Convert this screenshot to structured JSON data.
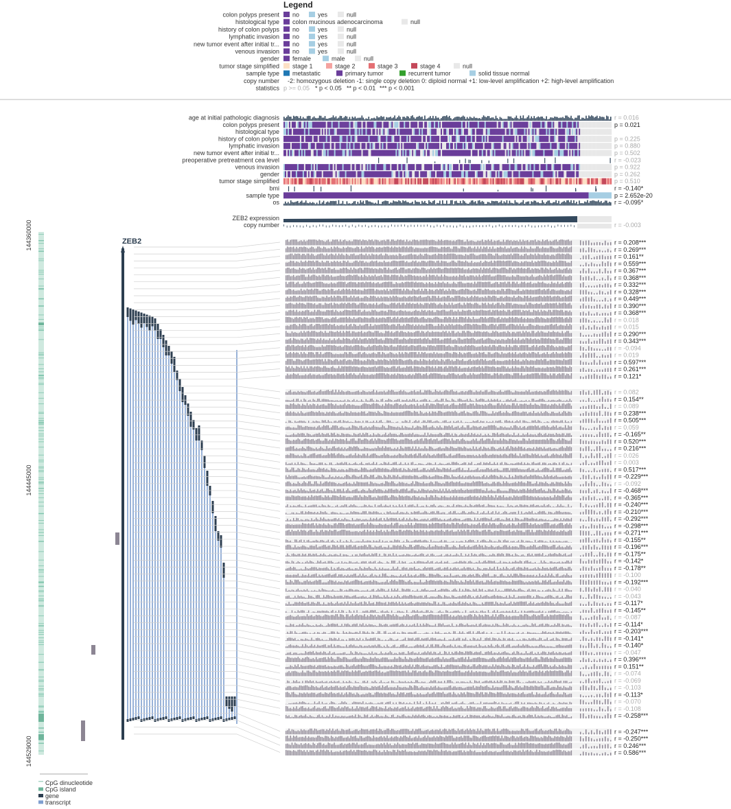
{
  "legend": {
    "title": "Legend",
    "rows": [
      {
        "label": "colon polyps present",
        "items": [
          {
            "text": "no",
            "color": "#6a3d9a"
          },
          {
            "text": "yes",
            "color": "#a6cee3"
          },
          {
            "text": "null",
            "color": "#e8e8e8"
          }
        ]
      },
      {
        "label": "histological type",
        "items": [
          {
            "text": "colon mucinous adenocarcinoma",
            "color": "#6a3d9a"
          },
          {
            "text": "null",
            "color": "#e8e8e8"
          }
        ]
      },
      {
        "label": "history of colon polyps",
        "items": [
          {
            "text": "no",
            "color": "#6a3d9a"
          },
          {
            "text": "yes",
            "color": "#a6cee3"
          },
          {
            "text": "null",
            "color": "#e8e8e8"
          }
        ]
      },
      {
        "label": "lymphatic invasion",
        "items": [
          {
            "text": "no",
            "color": "#6a3d9a"
          },
          {
            "text": "yes",
            "color": "#a6cee3"
          },
          {
            "text": "null",
            "color": "#e8e8e8"
          }
        ]
      },
      {
        "label": "new tumor event after initial tr...",
        "items": [
          {
            "text": "no",
            "color": "#6a3d9a"
          },
          {
            "text": "yes",
            "color": "#a6cee3"
          },
          {
            "text": "null",
            "color": "#e8e8e8"
          }
        ]
      },
      {
        "label": "venous invasion",
        "items": [
          {
            "text": "no",
            "color": "#6a3d9a"
          },
          {
            "text": "yes",
            "color": "#a6cee3"
          },
          {
            "text": "null",
            "color": "#e8e8e8"
          }
        ]
      },
      {
        "label": "gender",
        "items": [
          {
            "text": "female",
            "color": "#6a3d9a"
          },
          {
            "text": "male",
            "color": "#a6cee3"
          },
          {
            "text": "null",
            "color": "#e8e8e8"
          }
        ]
      },
      {
        "label": "tumor stage simplified",
        "items": [
          {
            "text": "stage 1",
            "color": "#fde0c5"
          },
          {
            "text": "stage 2",
            "color": "#f4a3a0"
          },
          {
            "text": "stage 3",
            "color": "#e46f73"
          },
          {
            "text": "stage 4",
            "color": "#c4485a"
          },
          {
            "text": "null",
            "color": "#e8e8e8"
          }
        ]
      },
      {
        "label": "sample type",
        "items": [
          {
            "text": "metastatic",
            "color": "#1f78b4"
          },
          {
            "text": "primary tumor",
            "color": "#6a3d9a"
          },
          {
            "text": "recurrent tumor",
            "color": "#33a02c"
          },
          {
            "text": "solid tissue normal",
            "color": "#a6cee3"
          }
        ]
      },
      {
        "label": "copy number",
        "text": "-2: homozygous deletion  -1: single copy deletion  0: diploid normal  +1: low-level amplification  +2: high-level amplification"
      },
      {
        "label": "statistics",
        "stats": [
          "p >= 0.05",
          "* p < 0.05",
          "** p < 0.01",
          "*** p < 0.001"
        ]
      }
    ]
  },
  "tracks": [
    {
      "label": "age at initial pathologic diagnosis",
      "type": "bars",
      "stat": "r = 0.016",
      "sig": false
    },
    {
      "label": "colon polyps present",
      "type": "cat",
      "stat": "p = 0.021",
      "sig": true
    },
    {
      "label": "histological type",
      "type": "cat",
      "stat": "",
      "sig": false
    },
    {
      "label": "history of colon polyps",
      "type": "cat",
      "stat": "p = 0.225",
      "sig": false
    },
    {
      "label": "lymphatic invasion",
      "type": "cat",
      "stat": "p = 0.880",
      "sig": false
    },
    {
      "label": "new tumor event after initial tr...",
      "type": "cat",
      "stat": "p = 0.502",
      "sig": false
    },
    {
      "label": "preoperative pretreatment cea level",
      "type": "sparse",
      "stat": "r = -0.023",
      "sig": false
    },
    {
      "label": "venous invasion",
      "type": "cat",
      "stat": "p = 0.922",
      "sig": false
    },
    {
      "label": "gender",
      "type": "cat",
      "stat": "p = 0.262",
      "sig": false
    },
    {
      "label": "tumor stage simplified",
      "type": "stage",
      "stat": "p = 0.510",
      "sig": false
    },
    {
      "label": "bmi",
      "type": "sparse",
      "stat": "r = -0.140*",
      "sig": true
    },
    {
      "label": "sample type",
      "type": "sample",
      "stat": "p = 2.652e-20",
      "sig": true
    },
    {
      "label": "os",
      "type": "bars",
      "stat": "r = -0.095*",
      "sig": true
    }
  ],
  "expression": {
    "label": "ZEB2 expression",
    "copy_label": "copy number",
    "stat": "r = -0.003"
  },
  "gene": {
    "name": "ZEB2"
  },
  "coords": [
    "144360000",
    "144445000",
    "144529000"
  ],
  "probe_stats": [
    "r = 0.208***",
    "r = 0.269***",
    "r = 0.161**",
    "r = 0.559***",
    "r = 0.367***",
    "r = 0.368***",
    "r = 0.332***",
    "r = 0.328***",
    "r = 0.449***",
    "r = 0.390***",
    "r = 0.368***",
    "r = 0.018",
    "r = 0.015",
    "r = 0.290***",
    "r = 0.343***",
    "r = -0.094",
    "r = 0.019",
    "r = 0.597***",
    "r = 0.261***",
    "r = 0.121*",
    "r = 0.082",
    "r = 0.154**",
    "r = 0.089",
    "r = 0.238***",
    "r = 0.505***",
    "r = 0.059",
    "r = -0.165**",
    "r = 0.520***",
    "r = 0.216***",
    "r = 0.026",
    "r = 0.003",
    "r = 0.517***",
    "r = -0.229***",
    "r = -0.092",
    "r = -0.468***",
    "r = -0.365***",
    "r = -0.240***",
    "r = -0.210***",
    "r = -0.292***",
    "r = -0.298***",
    "r = -0.271***",
    "r = -0.155**",
    "r = -0.196***",
    "r = -0.175**",
    "r = -0.142*",
    "r = -0.178**",
    "r = -0.100",
    "r = -0.192***",
    "r = -0.040",
    "r = -0.043",
    "r = -0.117*",
    "r = -0.145**",
    "r = -0.087",
    "r = -0.114*",
    "r = -0.203***",
    "r = -0.141*",
    "r = -0.140*",
    "r = -0.047",
    "r = 0.396***",
    "r = 0.151**",
    "r = -0.074",
    "r = -0.069",
    "r = -0.103",
    "r = -0.113*",
    "r = -0.070",
    "r = -0.108",
    "r = -0.258***",
    "r = -0.247***",
    "r = -0.250***",
    "r = 0.246***",
    "r = 0.586***"
  ],
  "bottom_legend": [
    {
      "text": "CpG dinucleotide",
      "color": "#a8d5c6"
    },
    {
      "text": "CpG island",
      "color": "#6fb59b"
    },
    {
      "text": "gene",
      "color": "#2c3e50"
    },
    {
      "text": "transcript",
      "color": "#7f9fcf"
    }
  ],
  "colors": {
    "gene": "#2c3e50",
    "transcript": "#7f9fcf",
    "probe": "#8c8593",
    "sig_text": "#222222",
    "nonsig_text": "#aaaaaa"
  }
}
